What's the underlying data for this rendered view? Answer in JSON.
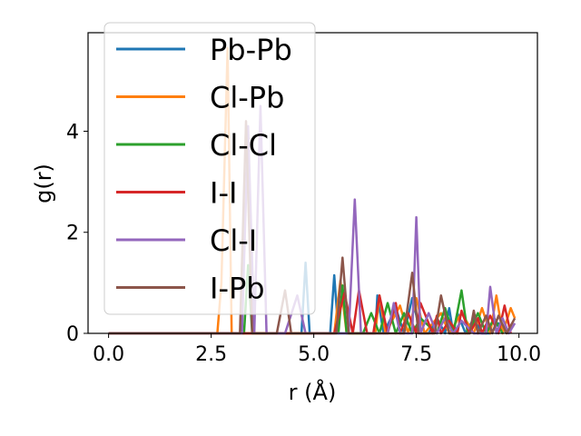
{
  "chart_data": {
    "type": "line",
    "title": "",
    "xlabel": "r (Å)",
    "ylabel": "g(r)",
    "xlim": [
      -0.5,
      10.45
    ],
    "ylim": [
      0,
      5.95
    ],
    "xticks": [
      0.0,
      2.5,
      5.0,
      7.5,
      10.0
    ],
    "xtick_labels": [
      "0.0",
      "2.5",
      "5.0",
      "7.5",
      "10.0"
    ],
    "yticks": [
      0,
      2,
      4
    ],
    "ytick_labels": [
      "0",
      "2",
      "4"
    ],
    "grid": false,
    "legend_position": "upper-left",
    "series": [
      {
        "name": "Pb-Pb",
        "color": "#1f77b4",
        "x": [
          0.0,
          2.6,
          4.7,
          4.8,
          4.9,
          5.0,
          5.4,
          5.5,
          5.6,
          5.75,
          5.9,
          6.1,
          6.5,
          6.55,
          6.7,
          7.0,
          7.2,
          7.4,
          7.6,
          7.8,
          8.0,
          8.2,
          8.3,
          8.4,
          8.5,
          8.7,
          8.9,
          9.1,
          9.3,
          9.5,
          9.7
        ],
        "y": [
          0.0,
          0.0,
          0.0,
          1.4,
          0.0,
          0.0,
          0.0,
          1.15,
          0.0,
          0.0,
          0.0,
          0.0,
          0.0,
          0.75,
          0.0,
          0.5,
          0.0,
          0.7,
          0.0,
          0.0,
          0.3,
          0.0,
          0.5,
          0.0,
          0.4,
          0.0,
          0.3,
          0.0,
          0.0,
          0.2,
          0.0
        ]
      },
      {
        "name": "Cl-Pb",
        "color": "#ff7f0e",
        "x": [
          0.0,
          2.65,
          2.75,
          2.9,
          3.0,
          3.2,
          4.3,
          4.9,
          5.4,
          5.5,
          5.65,
          5.8,
          6.3,
          6.5,
          6.6,
          6.75,
          7.1,
          7.3,
          7.5,
          7.7,
          8.1,
          8.3,
          8.6,
          8.9,
          9.1,
          9.3,
          9.45,
          9.6,
          9.8,
          9.9
        ],
        "y": [
          0.0,
          0.0,
          1.0,
          5.65,
          0.0,
          0.0,
          0.0,
          0.0,
          0.0,
          0.0,
          1.05,
          0.0,
          0.0,
          0.0,
          0.75,
          0.0,
          0.55,
          0.0,
          0.7,
          0.0,
          0.4,
          0.0,
          0.4,
          0.0,
          0.5,
          0.0,
          0.75,
          0.0,
          0.5,
          0.3
        ]
      },
      {
        "name": "Cl-Cl",
        "color": "#2ca02c",
        "x": [
          0.0,
          3.3,
          3.4,
          3.5,
          5.0,
          5.2,
          5.6,
          5.7,
          5.8,
          6.2,
          6.4,
          6.6,
          6.8,
          7.0,
          7.2,
          7.4,
          7.6,
          8.0,
          8.2,
          8.4,
          8.6,
          8.75,
          9.0,
          9.2,
          9.4,
          9.6
        ],
        "y": [
          0.0,
          0.0,
          1.35,
          0.0,
          0.0,
          0.0,
          0.0,
          0.95,
          0.0,
          0.0,
          0.4,
          0.0,
          0.6,
          0.0,
          0.4,
          0.0,
          0.3,
          0.0,
          0.5,
          0.0,
          0.85,
          0.0,
          0.4,
          0.0,
          0.3,
          0.0
        ]
      },
      {
        "name": "I-I",
        "color": "#d62728",
        "x": [
          0.0,
          5.0,
          5.5,
          5.75,
          5.95,
          6.1,
          6.3,
          6.45,
          6.6,
          6.8,
          7.0,
          7.1,
          7.3,
          7.5,
          7.6,
          7.9,
          8.0,
          8.1,
          8.3,
          8.5,
          8.6,
          8.8,
          9.0,
          9.1,
          9.3,
          9.5,
          9.65,
          9.8
        ],
        "y": [
          0.0,
          0.0,
          0.0,
          0.8,
          0.0,
          0.85,
          0.0,
          0.0,
          0.75,
          0.0,
          0.6,
          0.0,
          0.4,
          0.0,
          0.6,
          0.0,
          0.35,
          0.0,
          0.25,
          0.0,
          0.45,
          0.0,
          0.3,
          0.0,
          0.35,
          0.0,
          0.55,
          0.0
        ]
      },
      {
        "name": "Cl-I",
        "color": "#9467bd",
        "x": [
          0.0,
          3.1,
          3.25,
          3.4,
          3.55,
          3.7,
          3.85,
          4.3,
          4.6,
          4.8,
          5.5,
          5.85,
          6.0,
          6.15,
          6.5,
          6.8,
          6.95,
          7.1,
          7.25,
          7.4,
          7.5,
          7.6,
          7.8,
          8.0,
          8.2,
          8.4,
          8.6,
          8.9,
          9.1,
          9.2,
          9.3,
          9.45,
          9.6,
          9.75,
          9.9
        ],
        "y": [
          0.0,
          0.0,
          0.0,
          4.1,
          0.0,
          4.5,
          0.0,
          0.0,
          0.75,
          0.0,
          0.0,
          0.0,
          2.65,
          0.0,
          0.0,
          0.0,
          0.6,
          0.0,
          0.0,
          0.0,
          2.3,
          0.0,
          0.4,
          0.0,
          0.3,
          0.0,
          0.25,
          0.0,
          0.0,
          0.0,
          0.92,
          0.0,
          0.3,
          0.0,
          0.2
        ]
      },
      {
        "name": "I-Pb",
        "color": "#8c564b",
        "x": [
          0.0,
          3.2,
          3.35,
          3.5,
          4.1,
          4.3,
          4.45,
          5.0,
          5.55,
          5.7,
          5.85,
          6.1,
          6.3,
          6.5,
          6.7,
          6.9,
          7.1,
          7.2,
          7.4,
          7.55,
          7.8,
          7.95,
          8.1,
          8.3,
          8.6,
          8.8,
          8.9,
          9.0,
          9.2,
          9.35,
          9.5,
          9.7,
          9.9
        ],
        "y": [
          0.0,
          0.0,
          4.2,
          0.0,
          0.0,
          0.85,
          0.0,
          0.0,
          0.0,
          1.5,
          0.0,
          0.0,
          0.0,
          0.0,
          0.0,
          0.0,
          0.0,
          0.0,
          1.2,
          0.0,
          0.0,
          0.0,
          0.75,
          0.0,
          0.0,
          0.0,
          0.45,
          0.0,
          0.35,
          0.0,
          0.35,
          0.0,
          0.3
        ]
      }
    ]
  }
}
